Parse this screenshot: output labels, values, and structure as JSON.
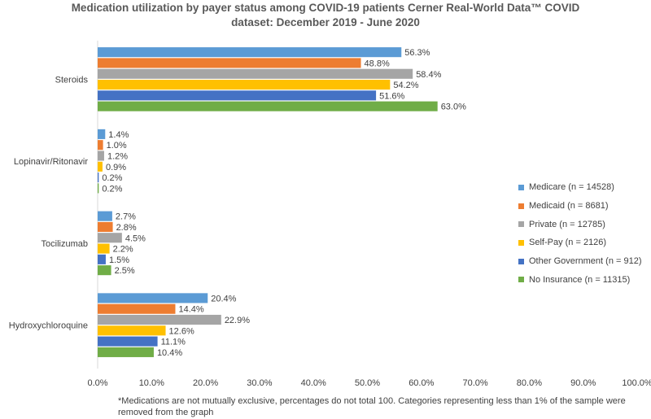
{
  "chart_data": {
    "type": "bar",
    "orientation": "horizontal",
    "title_lines": [
      "Medication utilization by payer status among COVID-19 patients Cerner Real-World Data™ COVID",
      "dataset: December 2019 - June 2020"
    ],
    "categories": [
      "Steroids",
      "Lopinavir/Ritonavir",
      "Tocilizumab",
      "Hydroxychloroquine"
    ],
    "series": [
      {
        "name": "Medicare (n = 14528)",
        "color": "#5B9BD5",
        "values": [
          56.3,
          1.4,
          2.7,
          20.4
        ]
      },
      {
        "name": "Medicaid (n = 8681)",
        "color": "#ED7D31",
        "values": [
          48.8,
          1.0,
          2.8,
          14.4
        ]
      },
      {
        "name": "Private (n = 12785)",
        "color": "#A5A5A5",
        "values": [
          58.4,
          1.2,
          4.5,
          22.9
        ]
      },
      {
        "name": "Self-Pay (n = 2126)",
        "color": "#FFC000",
        "values": [
          54.2,
          0.9,
          2.2,
          12.6
        ]
      },
      {
        "name": "Other Government (n = 912)",
        "color": "#4472C4",
        "values": [
          51.6,
          0.2,
          1.5,
          11.1
        ]
      },
      {
        "name": "No Insurance (n = 11315)",
        "color": "#70AD47",
        "values": [
          63.0,
          0.2,
          2.5,
          10.4
        ]
      }
    ],
    "value_format": "percent_1dp",
    "xlim": [
      0,
      100
    ],
    "x_ticks": [
      0,
      10,
      20,
      30,
      40,
      50,
      60,
      70,
      80,
      90,
      100
    ],
    "x_tick_labels": [
      "0.0%",
      "10.0%",
      "20.0%",
      "30.0%",
      "40.0%",
      "50.0%",
      "60.0%",
      "70.0%",
      "80.0%",
      "90.0%",
      "100.0%"
    ],
    "legend_position": "right",
    "gridlines": false
  },
  "footnote": "*Medications are not mutually exclusive, percentages do not total 100. Categories representing less than 1% of the sample were removed from the graph"
}
